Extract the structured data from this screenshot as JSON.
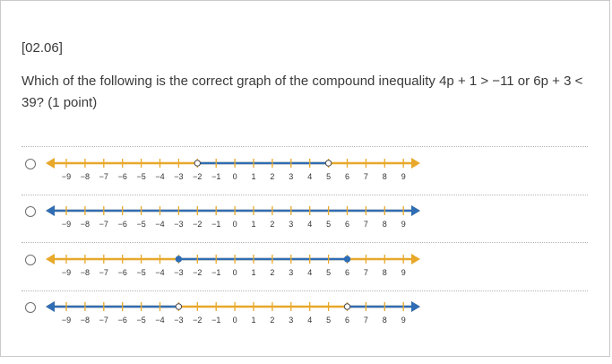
{
  "question": {
    "id_label": "[02.06]",
    "text": "Which of the following is the correct graph of the compound inequality 4p + 1 > −11 or 6p + 3 < 39? (1 point)"
  },
  "colors": {
    "axis": "#e8a82a",
    "shade": "#2f6db5",
    "point_stroke": "#4a4a4a",
    "open_fill": "#ffffff",
    "closed_fill": "#2f6db5"
  },
  "tick_labels": [
    "−9",
    "−8",
    "−7",
    "−6",
    "−5",
    "−4",
    "−3",
    "−2",
    "−1",
    "0",
    "1",
    "2",
    "3",
    "4",
    "5",
    "6",
    "7",
    "8",
    "9"
  ],
  "tick_values": [
    -9,
    -8,
    -7,
    -6,
    -5,
    -4,
    -3,
    -2,
    -1,
    0,
    1,
    2,
    3,
    4,
    5,
    6,
    7,
    8,
    9
  ],
  "axis_range": [
    -10,
    10
  ],
  "choices": [
    {
      "name": "choice-a",
      "segments": [
        [
          -2,
          5
        ]
      ],
      "points": [
        {
          "value": -2,
          "closed": false
        },
        {
          "value": 5,
          "closed": false
        }
      ]
    },
    {
      "name": "choice-b",
      "segments": [
        [
          -10,
          10
        ]
      ],
      "points": []
    },
    {
      "name": "choice-c",
      "segments": [
        [
          -3,
          6
        ]
      ],
      "points": [
        {
          "value": -3,
          "closed": true
        },
        {
          "value": 6,
          "closed": true
        }
      ]
    },
    {
      "name": "choice-d",
      "segments": [
        [
          -10,
          -3
        ],
        [
          6,
          10
        ]
      ],
      "points": [
        {
          "value": -3,
          "closed": false
        },
        {
          "value": 6,
          "closed": false
        }
      ]
    }
  ]
}
